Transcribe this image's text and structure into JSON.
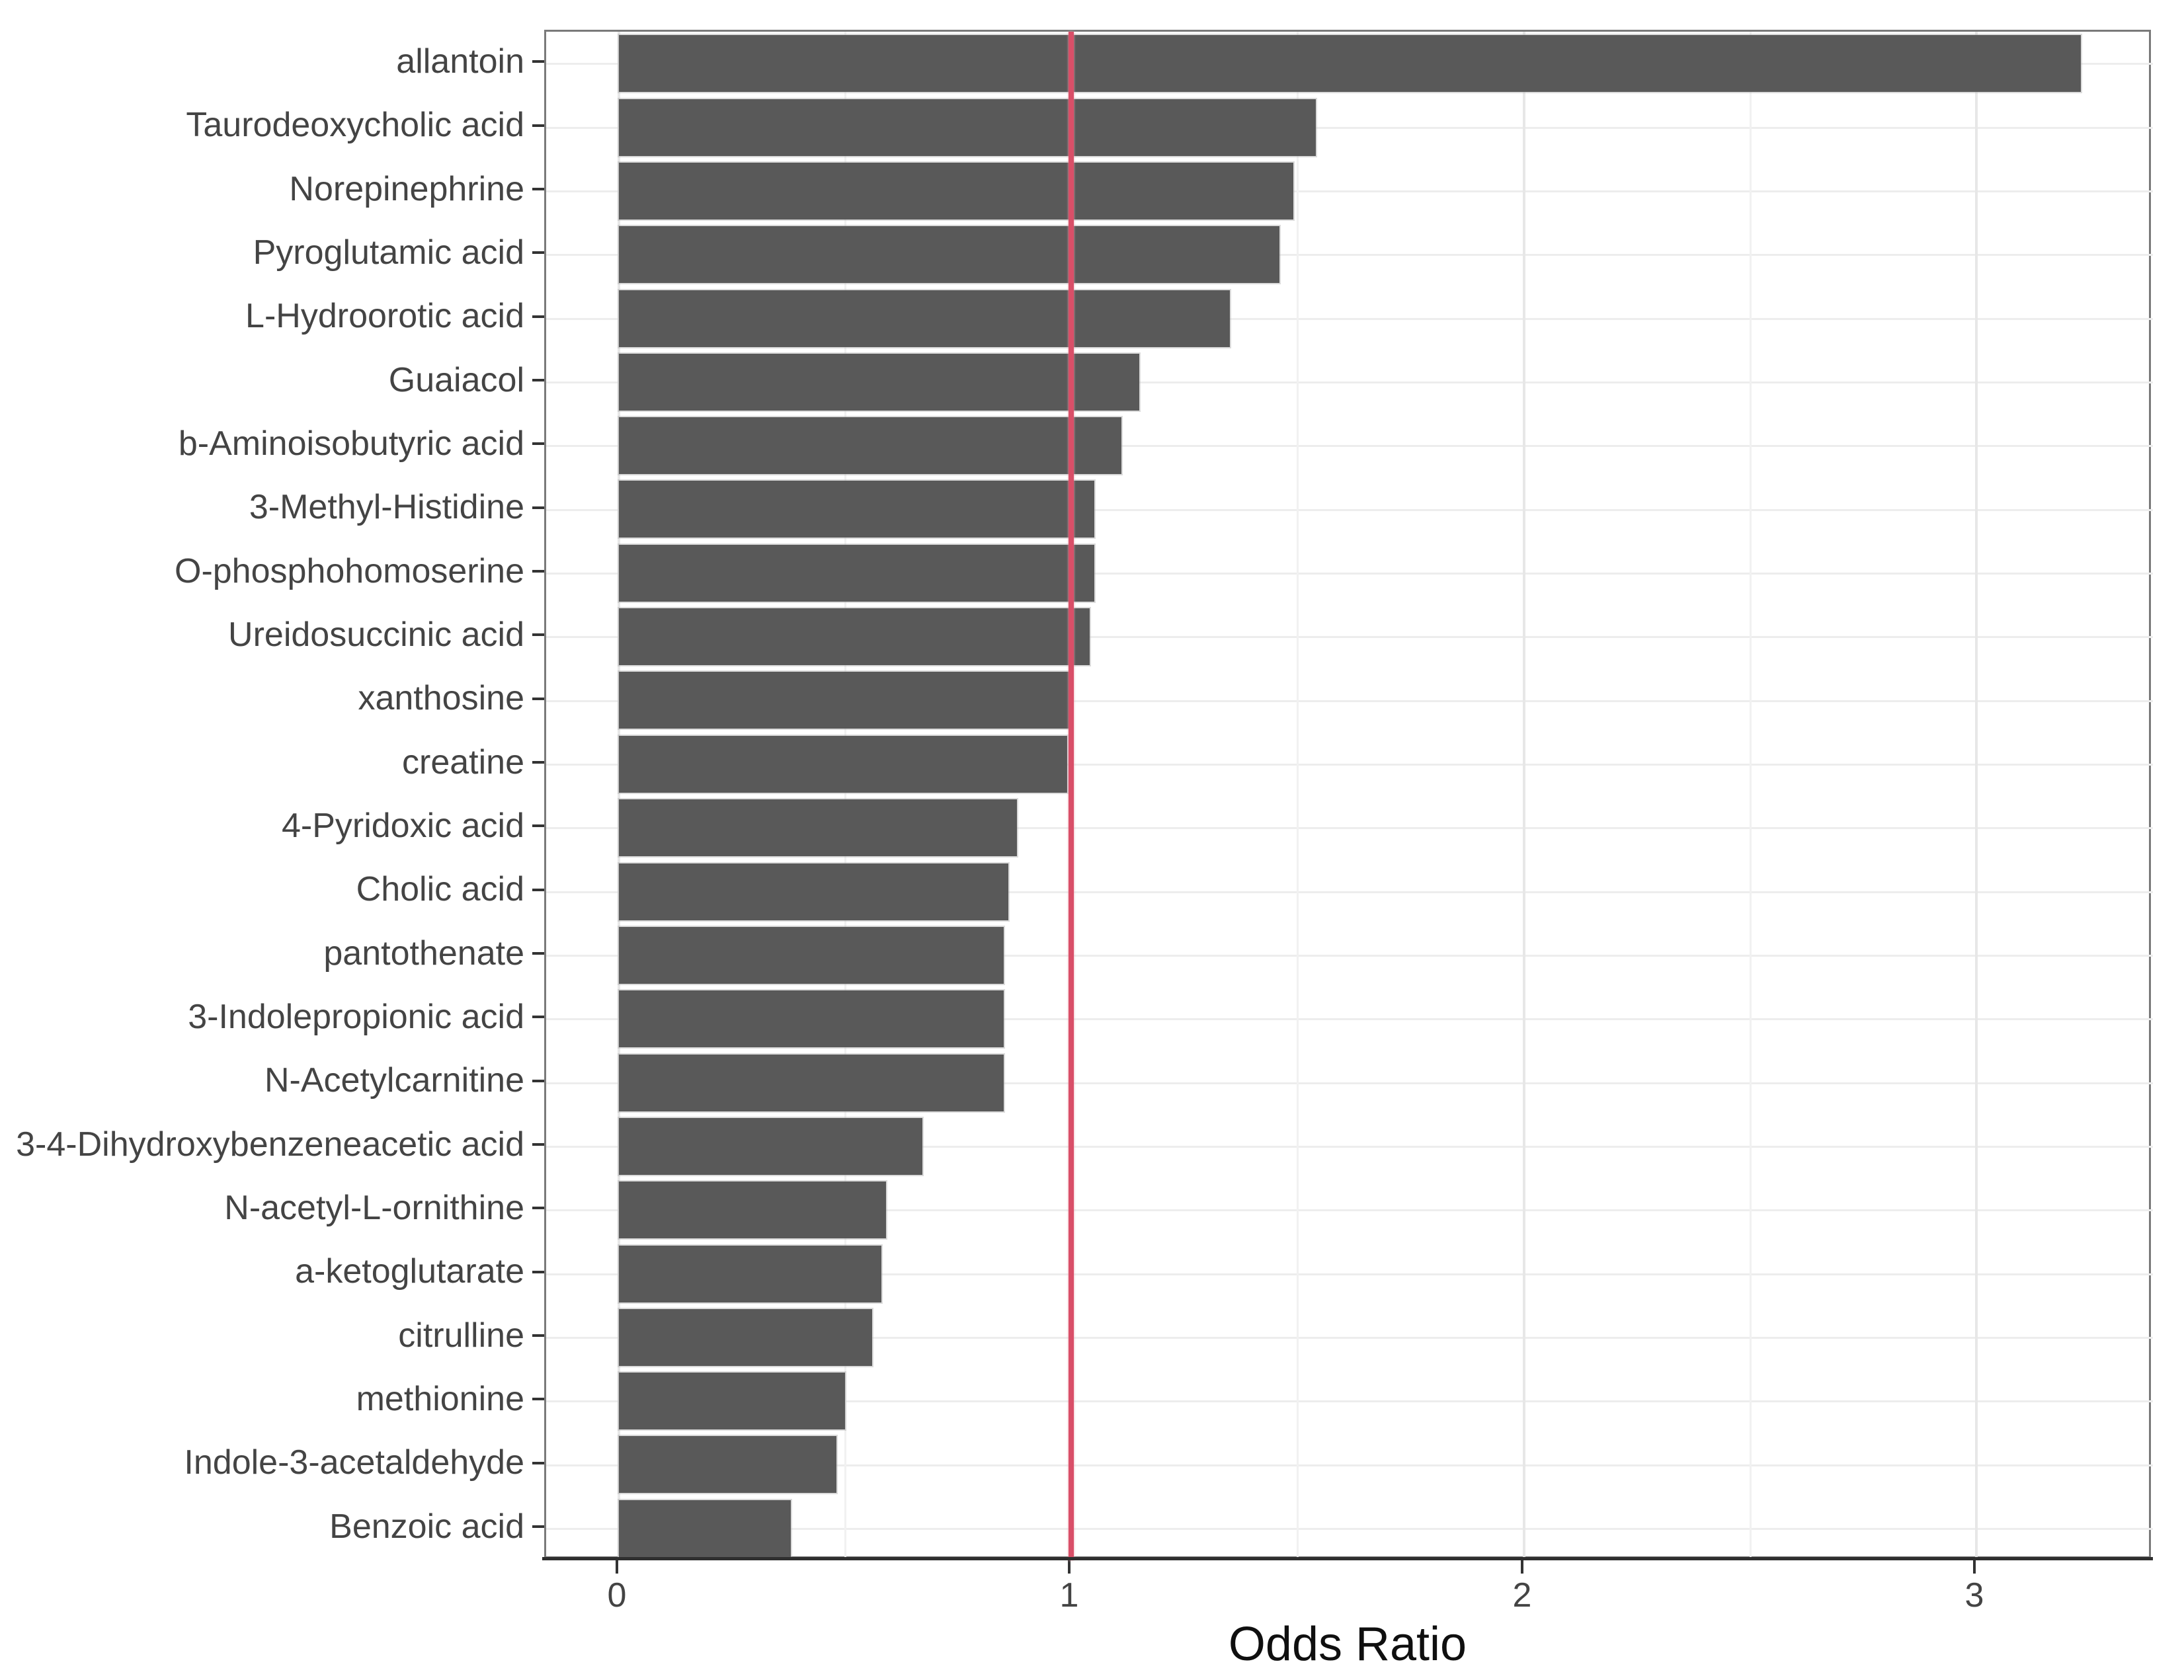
{
  "chart_data": {
    "type": "bar",
    "orientation": "horizontal",
    "title": "",
    "xlabel": "Odds Ratio",
    "ylabel": "",
    "categories": [
      "allantoin",
      "Taurodeoxycholic acid",
      "Norepinephrine",
      "Pyroglutamic acid",
      "L-Hydroorotic acid",
      "Guaiacol",
      "b-Aminoisobutyric acid",
      "3-Methyl-Histidine",
      "O-phosphohomoserine",
      "Ureidosuccinic acid",
      "xanthosine",
      "creatine",
      "4-Pyridoxic acid",
      "Cholic acid",
      "pantothenate",
      "3-Indolepropionic acid",
      "N-Acetylcarnitine",
      "3-4-Dihydroxybenzeneacetic acid",
      "N-acetyl-L-ornithine",
      "a-ketoglutarate",
      "citrulline",
      "methionine",
      "Indole-3-acetaldehyde",
      "Benzoic acid"
    ],
    "values": [
      3.23,
      1.54,
      1.49,
      1.46,
      1.35,
      1.15,
      1.11,
      1.05,
      1.05,
      1.04,
      1.0,
      0.99,
      0.88,
      0.86,
      0.85,
      0.85,
      0.85,
      0.67,
      0.59,
      0.58,
      0.56,
      0.5,
      0.48,
      0.38
    ],
    "xlim": [
      -0.16,
      3.39
    ],
    "x_major_ticks": [
      0,
      1,
      2,
      3
    ],
    "x_tick_labels": [
      "0",
      "1",
      "2",
      "3"
    ],
    "x_minor_gridlines": [
      0.5,
      1.5,
      2.5
    ],
    "grid": true,
    "legend": "none",
    "reference_line": {
      "x": 1
    },
    "colors": {
      "bar": "#595959",
      "reference_line": "#d94f68",
      "grid_major": "#e7e7e7",
      "grid_minor": "#f1f1f1",
      "axis_text": "#444444",
      "axis_title": "#0f0f0f",
      "panel_border": "#7a7a7a",
      "axis_line": "#2f2f2f",
      "tick_mark": "#333333",
      "background": "#ffffff"
    }
  }
}
